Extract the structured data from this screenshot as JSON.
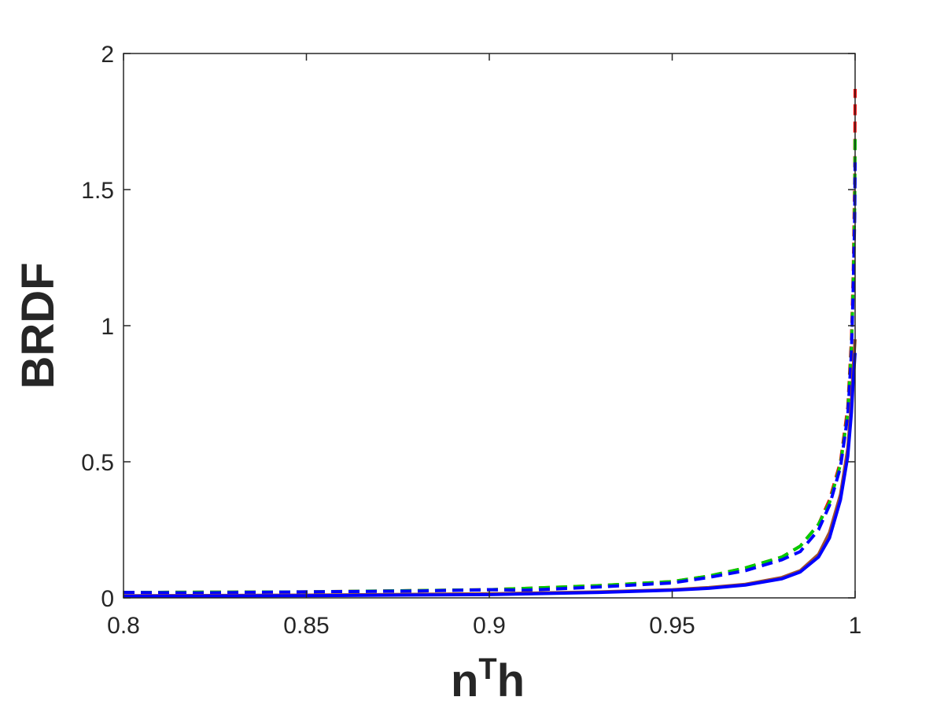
{
  "chart_data": {
    "type": "line",
    "title": "",
    "xlabel": {
      "base": "n",
      "sup": "T",
      "suffix": "h"
    },
    "ylabel": "BRDF",
    "xlim": [
      0.8,
      1.0
    ],
    "ylim": [
      0,
      2
    ],
    "xticks": [
      0.8,
      0.85,
      0.9,
      0.95,
      1.0
    ],
    "xtick_labels": [
      "0.8",
      "0.85",
      "0.9",
      "0.95",
      "1"
    ],
    "yticks": [
      0,
      0.5,
      1,
      1.5,
      2
    ],
    "ytick_labels": [
      "0",
      "0.5",
      "1",
      "1.5",
      "2"
    ],
    "grid": false,
    "legend": "none",
    "series": [
      {
        "color": "#ff0000",
        "dash": "dashed",
        "x": [
          0.8,
          0.85,
          0.9,
          0.93,
          0.95,
          0.96,
          0.97,
          0.98,
          0.985,
          0.99,
          0.993,
          0.996,
          0.998,
          0.999,
          0.9995,
          0.9999,
          1.0
        ],
        "y": [
          0.02,
          0.022,
          0.03,
          0.045,
          0.06,
          0.08,
          0.11,
          0.15,
          0.19,
          0.27,
          0.36,
          0.5,
          0.7,
          0.95,
          1.2,
          1.55,
          1.87
        ]
      },
      {
        "color": "#00cc00",
        "dash": "dashed",
        "x": [
          0.8,
          0.85,
          0.9,
          0.93,
          0.95,
          0.96,
          0.97,
          0.98,
          0.985,
          0.99,
          0.993,
          0.996,
          0.998,
          0.999,
          0.9995,
          0.9999,
          1.0
        ],
        "y": [
          0.02,
          0.022,
          0.03,
          0.045,
          0.06,
          0.08,
          0.11,
          0.15,
          0.19,
          0.27,
          0.35,
          0.49,
          0.68,
          0.92,
          1.15,
          1.45,
          1.7
        ]
      },
      {
        "color": "#0000ff",
        "dash": "dashed",
        "x": [
          0.8,
          0.82,
          0.85,
          0.88,
          0.9,
          0.91,
          0.93,
          0.95,
          0.96,
          0.97,
          0.975,
          0.98,
          0.985,
          0.99,
          0.993,
          0.996,
          0.998,
          0.999,
          0.9995,
          0.9999,
          1.0
        ],
        "y": [
          0.02,
          0.018,
          0.022,
          0.025,
          0.03,
          0.028,
          0.04,
          0.055,
          0.075,
          0.1,
          0.12,
          0.14,
          0.17,
          0.25,
          0.34,
          0.48,
          0.67,
          0.9,
          1.15,
          1.4,
          1.6
        ]
      },
      {
        "color": "#a0522d",
        "dash": "solid",
        "x": [
          0.8,
          0.85,
          0.9,
          0.93,
          0.95,
          0.96,
          0.97,
          0.98,
          0.985,
          0.99,
          0.993,
          0.996,
          0.998,
          0.999,
          0.9995,
          1.0
        ],
        "y": [
          0.008,
          0.01,
          0.015,
          0.022,
          0.03,
          0.038,
          0.05,
          0.075,
          0.1,
          0.16,
          0.24,
          0.38,
          0.55,
          0.72,
          0.85,
          0.95
        ]
      },
      {
        "color": "#0000ff",
        "dash": "solid",
        "x": [
          0.8,
          0.85,
          0.9,
          0.93,
          0.95,
          0.96,
          0.97,
          0.98,
          0.985,
          0.99,
          0.993,
          0.996,
          0.998,
          0.999,
          0.9995,
          1.0
        ],
        "y": [
          0.006,
          0.008,
          0.012,
          0.02,
          0.028,
          0.035,
          0.047,
          0.07,
          0.095,
          0.15,
          0.22,
          0.36,
          0.52,
          0.68,
          0.8,
          0.9
        ]
      }
    ]
  }
}
